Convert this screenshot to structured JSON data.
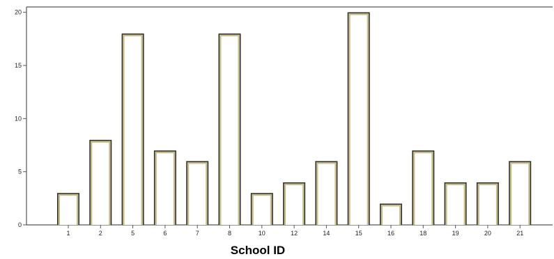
{
  "chart_data": {
    "type": "bar",
    "categories": [
      "1",
      "2",
      "5",
      "6",
      "7",
      "8",
      "10",
      "12",
      "14",
      "15",
      "16",
      "18",
      "19",
      "20",
      "21"
    ],
    "values": [
      3,
      8,
      18,
      7,
      6,
      18,
      3,
      4,
      6,
      20,
      2,
      7,
      4,
      4,
      6
    ],
    "xlabel": "School ID",
    "ylabel": "",
    "ylim": [
      0,
      20.5
    ],
    "yticks": [
      0,
      5,
      10,
      15,
      20
    ],
    "grid": false,
    "colors": {
      "bar_fill": "#ffffff",
      "bar_edge_outer": "#2b2b2b",
      "bar_edge_inner": "#c8bc8a",
      "frame": "#555555"
    }
  }
}
